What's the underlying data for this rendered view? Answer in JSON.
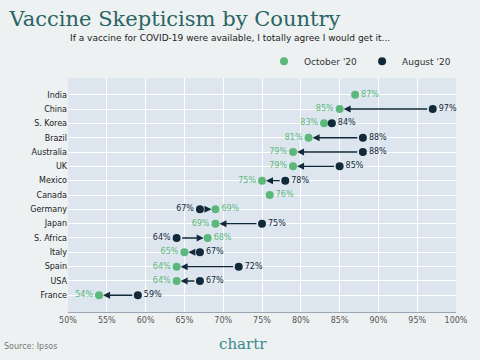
{
  "chart_data": {
    "type": "dot",
    "title": "Vaccine Skepticism by Country",
    "subtitle": "If a vaccine for COVID-19 were available, I totally agree I would get it...",
    "source": "Source: Ipsos",
    "brand": "chartr",
    "orientation": "horizontal",
    "categories": [
      "India",
      "China",
      "S. Korea",
      "Brazil",
      "Australia",
      "UK",
      "Mexico",
      "Canada",
      "Germany",
      "Japan",
      "S. Africa",
      "Italy",
      "Spain",
      "USA",
      "France"
    ],
    "series": [
      {
        "name": "October '20",
        "color": "#5cb87a",
        "marker": "circle",
        "values": [
          87,
          85,
          83,
          81,
          79,
          79,
          75,
          76,
          69,
          69,
          68,
          65,
          64,
          64,
          54
        ],
        "value_labels": [
          "87%",
          "85%",
          "83%",
          "81%",
          "79%",
          "79%",
          "75%",
          "76%",
          "69%",
          "69%",
          "68%",
          "65%",
          "64%",
          "64%",
          "54%"
        ]
      },
      {
        "name": "August '20",
        "color": "#12293a",
        "marker": "circle",
        "values": [
          null,
          97,
          84,
          88,
          88,
          85,
          78,
          null,
          67,
          75,
          64,
          67,
          72,
          67,
          59
        ],
        "value_labels": [
          null,
          "97%",
          "84%",
          "88%",
          "88%",
          "85%",
          "78%",
          null,
          "67%",
          "75%",
          "64%",
          "67%",
          "72%",
          "67%",
          "59%"
        ]
      }
    ],
    "xlim": [
      50,
      100
    ],
    "xticks": [
      {
        "value": 50,
        "label": "50%"
      },
      {
        "value": 55,
        "label": "55%"
      },
      {
        "value": 60,
        "label": "60%"
      },
      {
        "value": 65,
        "label": "65%"
      },
      {
        "value": 70,
        "label": "70%"
      },
      {
        "value": 75,
        "label": "75%"
      },
      {
        "value": 80,
        "label": "80%"
      },
      {
        "value": 85,
        "label": "85%"
      },
      {
        "value": 90,
        "label": "90%"
      },
      {
        "value": 95,
        "label": "95%"
      },
      {
        "value": 100,
        "label": "100%"
      }
    ],
    "grid": true,
    "legend": "top-right",
    "data_labels": true
  }
}
